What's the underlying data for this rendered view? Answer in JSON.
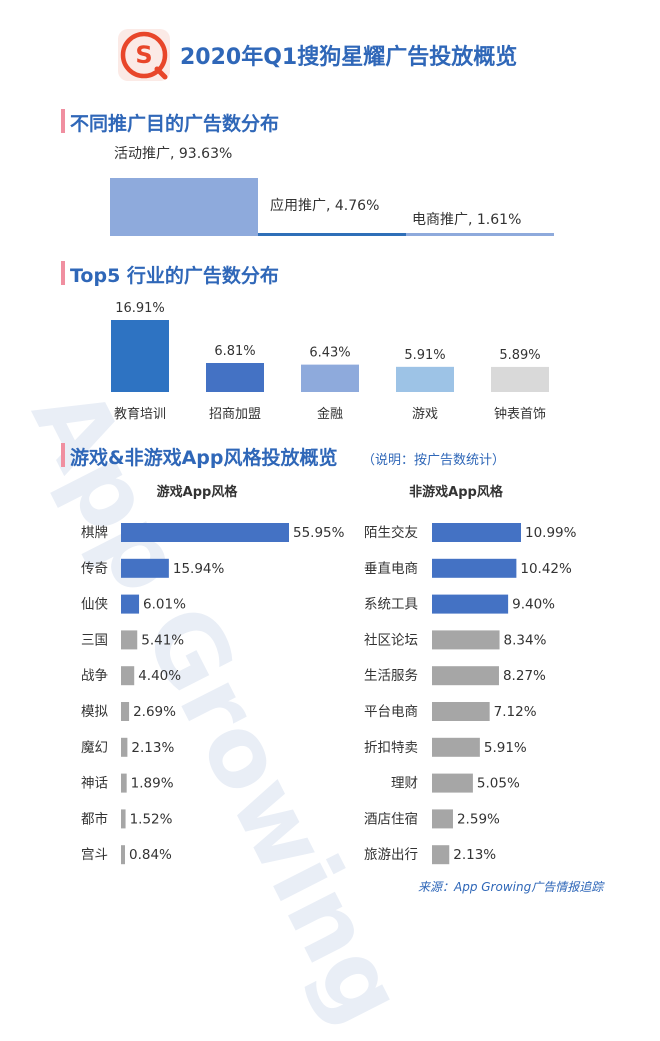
{
  "header": {
    "title": "2020年Q1搜狗星耀广告投放概览",
    "logo_letter": "S",
    "logo_color": "#e8462a"
  },
  "section1": {
    "title": "不同推广目的广告数分布",
    "chart_data": {
      "type": "bar",
      "categories": [
        "活动推广",
        "应用推广",
        "电商推广"
      ],
      "values": [
        93.63,
        4.76,
        1.61
      ],
      "labels": [
        "活动推广, 93.63%",
        "应用推广, 4.76%",
        "电商推广, 1.61%"
      ],
      "colors": [
        "#8eaadc",
        "#2f6fb8",
        "#8eaadc"
      ]
    }
  },
  "section2": {
    "title": "Top5 行业的广告数分布",
    "chart_data": {
      "type": "bar",
      "categories": [
        "教育培训",
        "招商加盟",
        "金融",
        "游戏",
        "钟表首饰"
      ],
      "values": [
        16.91,
        6.81,
        6.43,
        5.91,
        5.89
      ],
      "value_labels": [
        "16.91%",
        "6.81%",
        "6.43%",
        "5.91%",
        "5.89%"
      ],
      "colors": [
        "#2e73c2",
        "#4472c4",
        "#8eaadc",
        "#9dc3e6",
        "#d9d9d9"
      ]
    }
  },
  "section3": {
    "title": "游戏&非游戏App风格投放概览",
    "note": "（说明：按广告数统计）",
    "chart_data": [
      {
        "type": "bar",
        "title": "游戏App风格",
        "categories": [
          "棋牌",
          "传奇",
          "仙侠",
          "三国",
          "战争",
          "模拟",
          "魔幻",
          "神话",
          "都市",
          "宫斗"
        ],
        "values": [
          55.95,
          15.94,
          6.01,
          5.41,
          4.4,
          2.69,
          2.13,
          1.89,
          1.52,
          0.84
        ],
        "value_labels": [
          "55.95%",
          "15.94%",
          "6.01%",
          "5.41%",
          "4.40%",
          "2.69%",
          "2.13%",
          "1.89%",
          "1.52%",
          "0.84%"
        ],
        "highlight_count": 3
      },
      {
        "type": "bar",
        "title": "非游戏App风格",
        "categories": [
          "陌生交友",
          "垂直电商",
          "系统工具",
          "社区论坛",
          "生活服务",
          "平台电商",
          "折扣特卖",
          "理财",
          "酒店住宿",
          "旅游出行"
        ],
        "values": [
          10.99,
          10.42,
          9.4,
          8.34,
          8.27,
          7.12,
          5.91,
          5.05,
          2.59,
          2.13
        ],
        "value_labels": [
          "10.99%",
          "10.42%",
          "9.40%",
          "8.34%",
          "8.27%",
          "7.12%",
          "5.91%",
          "5.05%",
          "2.59%",
          "2.13%"
        ],
        "highlight_count": 3
      }
    ],
    "colors": {
      "highlight": "#4472c4",
      "other": "#a6a6a6"
    }
  },
  "footer": {
    "source": "来源：App Growing广告情报追踪"
  },
  "watermark": "App Growing"
}
